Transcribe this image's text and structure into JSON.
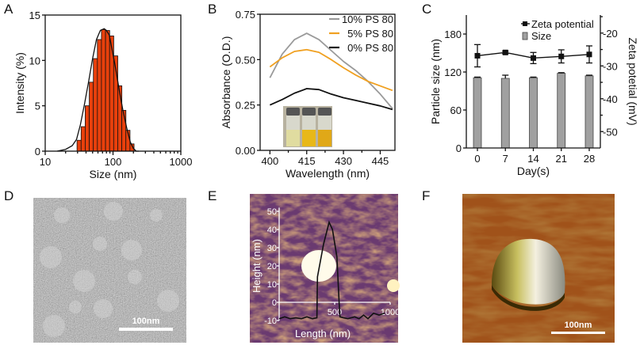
{
  "panel_labels": [
    "A",
    "B",
    "C",
    "D",
    "E",
    "F"
  ],
  "chart_data": [
    {
      "panel": "A",
      "type": "bar",
      "xlabel": "Size (nm)",
      "ylabel": "Intensity (%)",
      "xscale": "log",
      "xlim": [
        10,
        1000
      ],
      "ylim": [
        0,
        15
      ],
      "xticks": [
        "10",
        "100",
        "1000"
      ],
      "yticks": [
        "0",
        "5",
        "10",
        "15"
      ],
      "bar_color": "#e8400c",
      "x": [
        31.6,
        36.3,
        41.7,
        47.9,
        55.0,
        63.1,
        72.4,
        83.2,
        95.5,
        109.6,
        125.9,
        144.5,
        166.0,
        190.5
      ],
      "values": [
        1.2,
        2.7,
        5.0,
        7.6,
        10.2,
        12.3,
        13.4,
        13.3,
        12.7,
        10.5,
        7.2,
        4.5,
        2.3,
        0.8
      ],
      "fit_curve": {
        "x": [
          15,
          20,
          25,
          29,
          33,
          38,
          44,
          50,
          57,
          65,
          74,
          80,
          88,
          98,
          110,
          125,
          140,
          160,
          180,
          200,
          220,
          240
        ],
        "y": [
          0,
          0.2,
          0.6,
          1.3,
          2.9,
          5.2,
          7.8,
          10.2,
          12.3,
          13.3,
          13.5,
          13.3,
          12.8,
          11.0,
          9.0,
          6.5,
          4.5,
          2.5,
          1.0,
          0.3,
          0,
          0
        ]
      }
    },
    {
      "panel": "B",
      "type": "line",
      "xlabel": "Wavelength (nm)",
      "ylabel": "Absorbance (O.D.)",
      "xlim": [
        396,
        451
      ],
      "ylim": [
        0,
        0.75
      ],
      "xticks": [
        "400",
        "415",
        "430",
        "445"
      ],
      "yticks": [
        "0.00",
        "0.25",
        "0.50",
        "0.75"
      ],
      "legend_position": "top-right",
      "x": [
        400,
        405,
        410,
        415,
        420,
        425,
        430,
        435,
        440,
        445,
        450
      ],
      "series": [
        {
          "name": "10% PS 80",
          "color": "#9a9a9a",
          "values": [
            0.4,
            0.53,
            0.61,
            0.645,
            0.61,
            0.55,
            0.49,
            0.44,
            0.38,
            0.31,
            0.23
          ]
        },
        {
          "name": "5% PS 80",
          "color": "#f0a020",
          "values": [
            0.46,
            0.51,
            0.545,
            0.555,
            0.54,
            0.5,
            0.455,
            0.415,
            0.38,
            0.355,
            0.33
          ]
        },
        {
          "name": "0% PS 80",
          "color": "#111111",
          "values": [
            0.25,
            0.28,
            0.315,
            0.34,
            0.335,
            0.31,
            0.29,
            0.275,
            0.26,
            0.245,
            0.225
          ]
        }
      ],
      "inset": "photo of three vials"
    },
    {
      "panel": "C",
      "type": "bar",
      "xlabel": "Day(s)",
      "ylabel": "Particle size (nm)",
      "y2label": "Zeta potetial (mV)",
      "categories": [
        "0",
        "7",
        "14",
        "21",
        "28"
      ],
      "ylim": [
        0,
        210
      ],
      "y2lim": [
        -55,
        -14.5
      ],
      "yticks": [
        "0",
        "60",
        "120",
        "180"
      ],
      "y2ticks": [
        "-50",
        "-40",
        "-30",
        "-20"
      ],
      "legend_position": "top-right",
      "series": [
        {
          "name": "Size",
          "axis": "left",
          "type": "bar",
          "color": "#a0a0a0",
          "values": [
            111,
            110,
            111,
            118,
            114
          ],
          "errors": [
            1,
            5,
            1,
            1,
            1
          ]
        },
        {
          "name": "Zeta potential",
          "axis": "right",
          "type": "line",
          "color": "#111111",
          "values": [
            -26.9,
            -25.9,
            -27.6,
            -27.1,
            -26.5
          ],
          "errors": [
            3.4,
            0.4,
            1.7,
            2.0,
            2.6
          ]
        }
      ]
    },
    {
      "panel": "E",
      "type": "line",
      "xlabel": "Length (nm)",
      "ylabel": "Height (nm)",
      "xticks": [
        "500",
        "1000"
      ],
      "yticks": [
        "-10",
        "0",
        "10",
        "20",
        "30",
        "40",
        "50"
      ],
      "x": [
        0,
        50,
        100,
        150,
        200,
        250,
        300,
        340,
        345,
        400,
        450,
        480,
        520,
        540,
        548,
        580,
        620,
        680,
        720,
        760,
        800,
        850,
        900,
        950
      ],
      "values": [
        -9,
        -8,
        -9,
        -8.5,
        -9,
        -8,
        -9,
        -8.5,
        14,
        32,
        44,
        40,
        25,
        0,
        -8,
        -8.5,
        -9,
        -8,
        -9,
        -7,
        -9,
        -6,
        -7,
        -6
      ]
    }
  ],
  "images": {
    "D": {
      "scale_bar": "100nm"
    },
    "F": {
      "scale_bar": "100nm"
    }
  }
}
